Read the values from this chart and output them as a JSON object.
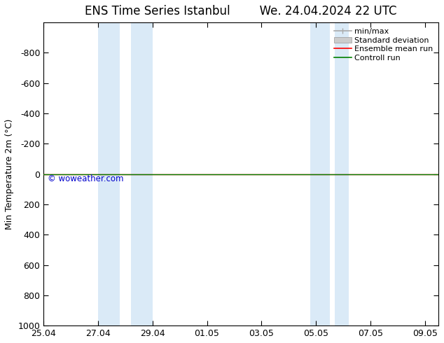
{
  "title_left": "ENS Time Series Istanbul",
  "title_right": "We. 24.04.2024 22 UTC",
  "ylabel": "Min Temperature 2m (°C)",
  "ylim_top": -1000,
  "ylim_bottom": 1000,
  "yticks": [
    -800,
    -600,
    -400,
    -200,
    0,
    200,
    400,
    600,
    800,
    1000
  ],
  "xtick_labels": [
    "25.04",
    "27.04",
    "29.04",
    "01.05",
    "03.05",
    "05.05",
    "07.05",
    "09.05"
  ],
  "xtick_positions": [
    0,
    2,
    4,
    6,
    8,
    10,
    12,
    14
  ],
  "xlim": [
    0,
    14.5
  ],
  "shade_bands": [
    {
      "start": 2.0,
      "end": 2.8
    },
    {
      "start": 3.2,
      "end": 4.0
    },
    {
      "start": 9.8,
      "end": 10.5
    },
    {
      "start": 10.7,
      "end": 11.2
    }
  ],
  "shade_color": "#daeaf7",
  "green_line_y": 0,
  "green_line_color": "#008000",
  "red_line_y": 0,
  "red_line_color": "#ff0000",
  "watermark": "© woweather.com",
  "watermark_color": "#0000cc",
  "bg_color": "#ffffff",
  "legend_entries": [
    "min/max",
    "Standard deviation",
    "Ensemble mean run",
    "Controll run"
  ],
  "legend_line_color": "#aaaaaa",
  "legend_std_color": "#cccccc",
  "legend_mean_color": "#ff0000",
  "legend_ctrl_color": "#008000",
  "title_fontsize": 12,
  "ylabel_fontsize": 9,
  "tick_fontsize": 9,
  "legend_fontsize": 8
}
